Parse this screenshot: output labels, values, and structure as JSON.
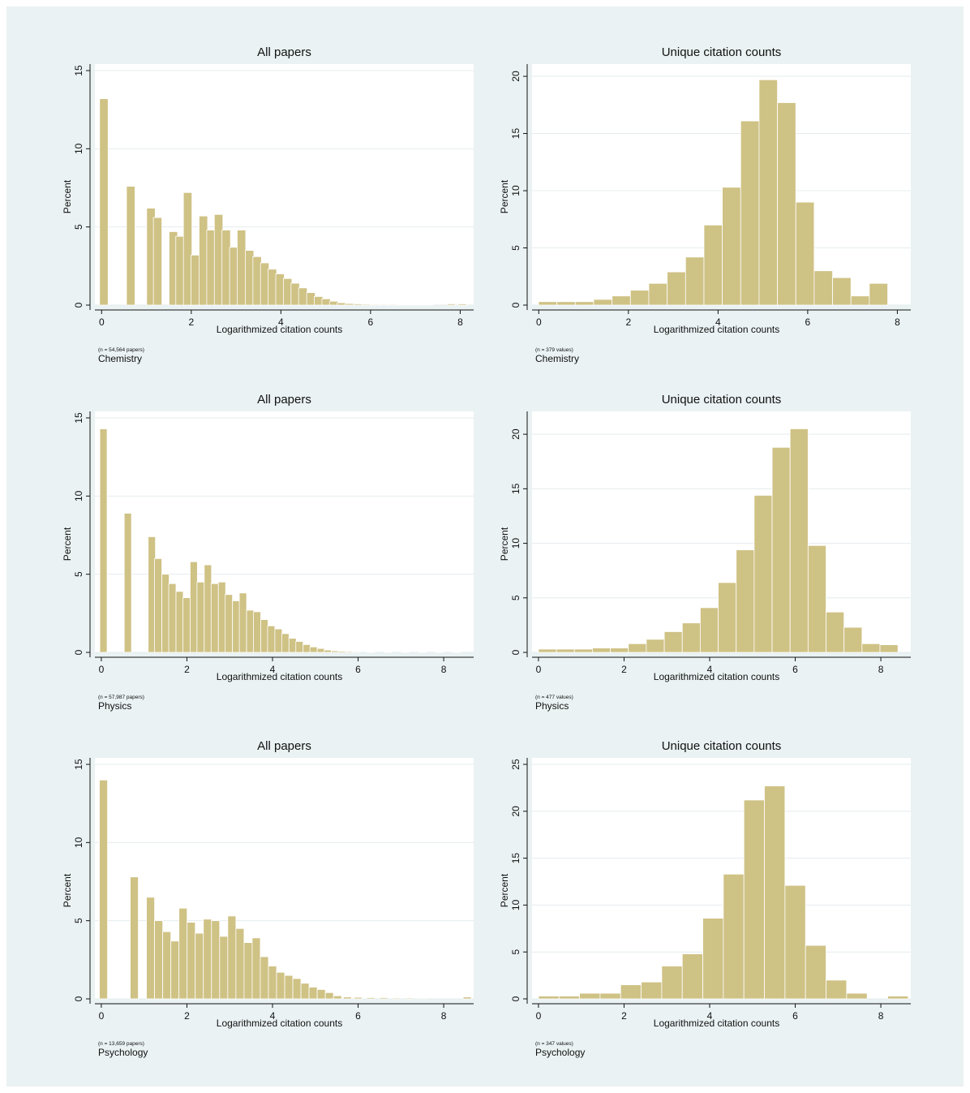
{
  "colors": {
    "background": "#eaf2f3",
    "plot_area": "#ffffff",
    "bar_fill": "#cfc285",
    "bar_stroke": "#ffffff",
    "grid": "#e4ecee",
    "axis": "#111111"
  },
  "chart_data": [
    {
      "type": "bar",
      "title": "All papers",
      "xlabel": "Logarithmized citation counts",
      "ylabel": "Percent",
      "note": "(n = 54,564 papers)",
      "caption": "Chemistry",
      "xlim": [
        -0.15,
        8.3
      ],
      "ylim": [
        0,
        15
      ],
      "xticks": [
        0,
        2,
        4,
        6,
        8
      ],
      "yticks": [
        0,
        5,
        10,
        15
      ],
      "grid": true,
      "bin_width": 0.19,
      "x": [
        0.05,
        0.65,
        1.1,
        1.25,
        1.6,
        1.75,
        1.92,
        2.09,
        2.27,
        2.44,
        2.61,
        2.78,
        2.95,
        3.12,
        3.3,
        3.47,
        3.64,
        3.81,
        3.98,
        4.15,
        4.32,
        4.49,
        4.67,
        4.84,
        5.01,
        5.18,
        5.35,
        5.53,
        5.72,
        5.9,
        6.1,
        6.3,
        6.5,
        6.7,
        6.9,
        7.1,
        7.3,
        7.8,
        8.05
      ],
      "values": [
        13.2,
        7.6,
        6.2,
        5.6,
        4.7,
        4.4,
        7.2,
        3.2,
        5.7,
        4.8,
        5.8,
        4.8,
        3.7,
        4.8,
        3.5,
        3.1,
        2.7,
        2.3,
        2.0,
        1.7,
        1.4,
        1.1,
        0.8,
        0.55,
        0.4,
        0.25,
        0.15,
        0.1,
        0.08,
        0.06,
        0.05,
        0.05,
        0.05,
        0.04,
        0.04,
        0.04,
        0.04,
        0.08,
        0.08
      ]
    },
    {
      "type": "bar",
      "title": "Unique citation counts",
      "xlabel": "Logarithmized citation counts",
      "ylabel": "Percent",
      "note": "(n = 379 values)",
      "caption": "Chemistry",
      "xlim": [
        -0.15,
        8.3
      ],
      "ylim": [
        0,
        20.5
      ],
      "xticks": [
        0,
        2,
        4,
        6,
        8
      ],
      "yticks": [
        0,
        5,
        10,
        15,
        20
      ],
      "grid": true,
      "bin_width": 0.41,
      "x": [
        0.2,
        0.61,
        1.02,
        1.43,
        1.84,
        2.25,
        2.66,
        3.07,
        3.48,
        3.89,
        4.3,
        4.71,
        5.12,
        5.53,
        5.94,
        6.35,
        6.76,
        7.17,
        7.58,
        7.99
      ],
      "values": [
        0.3,
        0.3,
        0.3,
        0.5,
        0.8,
        1.3,
        1.9,
        2.9,
        4.2,
        7.0,
        10.3,
        16.1,
        19.7,
        17.7,
        9.0,
        3.0,
        2.4,
        0.8,
        1.9,
        0
      ]
    },
    {
      "type": "bar",
      "title": "All papers",
      "xlabel": "Logarithmized citation counts",
      "ylabel": "Percent",
      "note": "(n = 57,987 papers)",
      "caption": "Physics",
      "xlim": [
        -0.15,
        8.7
      ],
      "ylim": [
        0,
        15
      ],
      "xticks": [
        0,
        2,
        4,
        6,
        8
      ],
      "yticks": [
        0,
        5,
        10,
        15
      ],
      "grid": true,
      "bin_width": 0.17,
      "x": [
        0.05,
        0.62,
        1.18,
        1.33,
        1.5,
        1.66,
        1.83,
        1.99,
        2.16,
        2.32,
        2.49,
        2.65,
        2.82,
        2.98,
        3.15,
        3.31,
        3.48,
        3.64,
        3.81,
        3.97,
        4.14,
        4.3,
        4.47,
        4.63,
        4.8,
        4.96,
        5.13,
        5.29,
        5.46,
        5.62,
        5.79,
        5.95,
        6.3,
        6.7,
        7.1,
        7.5,
        7.9,
        8.3
      ],
      "values": [
        14.3,
        8.9,
        7.4,
        6.0,
        5.0,
        4.4,
        3.9,
        3.5,
        5.8,
        4.5,
        5.6,
        4.4,
        4.5,
        3.7,
        3.3,
        3.8,
        2.7,
        2.6,
        2.1,
        1.7,
        1.5,
        1.2,
        0.9,
        0.7,
        0.5,
        0.35,
        0.25,
        0.15,
        0.1,
        0.08,
        0.06,
        0.05,
        0.04,
        0.04,
        0.04,
        0.04,
        0.04,
        0.04
      ]
    },
    {
      "type": "bar",
      "title": "Unique citation counts",
      "xlabel": "Logarithmized citation counts",
      "ylabel": "Percent",
      "note": "(n = 477 values)",
      "caption": "Physics",
      "xlim": [
        -0.15,
        8.7
      ],
      "ylim": [
        0,
        21.5
      ],
      "xticks": [
        0,
        2,
        4,
        6,
        8
      ],
      "yticks": [
        0,
        5,
        10,
        15,
        20
      ],
      "grid": true,
      "bin_width": 0.42,
      "x": [
        0.21,
        0.63,
        1.05,
        1.47,
        1.89,
        2.31,
        2.73,
        3.15,
        3.57,
        3.99,
        4.41,
        4.83,
        5.25,
        5.67,
        6.09,
        6.51,
        6.93,
        7.35,
        7.77,
        8.19
      ],
      "values": [
        0.3,
        0.3,
        0.3,
        0.4,
        0.4,
        0.8,
        1.2,
        1.9,
        2.7,
        4.1,
        6.4,
        9.4,
        14.4,
        18.8,
        20.5,
        9.8,
        3.7,
        2.3,
        0.8,
        0.7
      ]
    },
    {
      "type": "bar",
      "title": "All papers",
      "xlabel": "Logarithmized citation counts",
      "ylabel": "Percent",
      "note": "(n = 13,659 papers)",
      "caption": "Psychology",
      "xlim": [
        -0.15,
        8.7
      ],
      "ylim": [
        0,
        15
      ],
      "xticks": [
        0,
        2,
        4,
        6,
        8
      ],
      "yticks": [
        0,
        5,
        10,
        15
      ],
      "grid": true,
      "bin_width": 0.19,
      "x": [
        0.05,
        0.77,
        1.15,
        1.34,
        1.53,
        1.72,
        1.91,
        2.1,
        2.29,
        2.48,
        2.67,
        2.86,
        3.05,
        3.24,
        3.43,
        3.62,
        3.81,
        4.0,
        4.19,
        4.38,
        4.57,
        4.76,
        4.95,
        5.14,
        5.33,
        5.52,
        5.75,
        6.0,
        6.3,
        6.6,
        6.9,
        7.2,
        7.5,
        8.55
      ],
      "values": [
        14.0,
        7.8,
        6.5,
        5.0,
        4.3,
        3.7,
        5.8,
        4.9,
        4.2,
        5.1,
        5.0,
        4.0,
        5.3,
        4.5,
        3.6,
        3.9,
        2.7,
        2.1,
        1.7,
        1.5,
        1.3,
        1.0,
        0.75,
        0.6,
        0.4,
        0.2,
        0.12,
        0.1,
        0.08,
        0.08,
        0.06,
        0.06,
        0.05,
        0.12
      ]
    },
    {
      "type": "bar",
      "title": "Unique citation counts",
      "xlabel": "Logarithmized citation counts",
      "ylabel": "Percent",
      "note": "(n = 347 values)",
      "caption": "Psychology",
      "xlim": [
        -0.15,
        8.7
      ],
      "ylim": [
        0,
        25
      ],
      "xticks": [
        0,
        2,
        4,
        6,
        8
      ],
      "yticks": [
        0,
        5,
        10,
        15,
        20,
        25
      ],
      "grid": true,
      "bin_width": 0.48,
      "x": [
        0.24,
        0.72,
        1.2,
        1.68,
        2.16,
        2.64,
        3.12,
        3.6,
        4.08,
        4.56,
        5.04,
        5.52,
        6.0,
        6.48,
        6.96,
        7.44,
        7.92,
        8.4
      ],
      "values": [
        0.3,
        0.3,
        0.6,
        0.6,
        1.5,
        1.8,
        3.5,
        4.8,
        8.6,
        13.3,
        21.2,
        22.7,
        12.1,
        5.7,
        2.0,
        0.6,
        0,
        0.3
      ]
    }
  ]
}
